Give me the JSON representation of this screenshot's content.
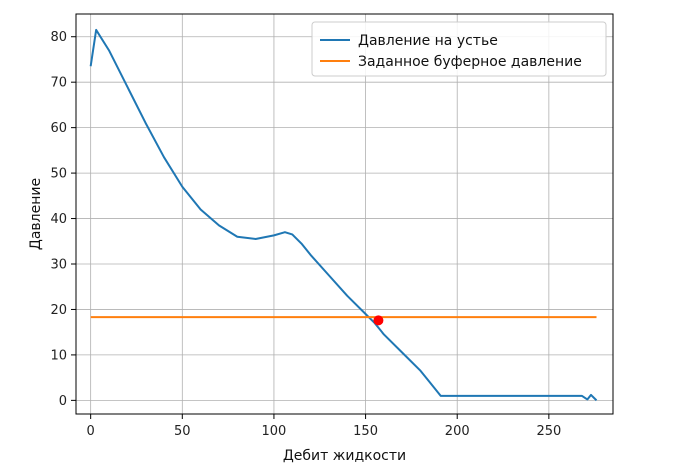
{
  "chart_data": {
    "type": "line",
    "title": "",
    "xlabel": "Дебит жидкости",
    "ylabel": "Давление",
    "xlim": [
      -8,
      285
    ],
    "ylim": [
      -3,
      85
    ],
    "xticks": [
      0,
      50,
      100,
      150,
      200,
      250
    ],
    "yticks": [
      0,
      10,
      20,
      30,
      40,
      50,
      60,
      70,
      80
    ],
    "grid": true,
    "legend_position": "top-right",
    "series": [
      {
        "name": "Давление на устье",
        "color": "#1f77b4",
        "points": [
          [
            0,
            73.5
          ],
          [
            3,
            81.5
          ],
          [
            10,
            77
          ],
          [
            20,
            69
          ],
          [
            30,
            61
          ],
          [
            40,
            53.5
          ],
          [
            50,
            47
          ],
          [
            60,
            42
          ],
          [
            70,
            38.5
          ],
          [
            80,
            36
          ],
          [
            90,
            35.5
          ],
          [
            100,
            36.3
          ],
          [
            106,
            37
          ],
          [
            110,
            36.5
          ],
          [
            115,
            34.5
          ],
          [
            120,
            32
          ],
          [
            130,
            27.5
          ],
          [
            140,
            23
          ],
          [
            150,
            19
          ],
          [
            155,
            17
          ],
          [
            160,
            14.5
          ],
          [
            170,
            10.5
          ],
          [
            180,
            6.5
          ],
          [
            187,
            3
          ],
          [
            191,
            1
          ],
          [
            200,
            1
          ],
          [
            220,
            1
          ],
          [
            250,
            1
          ],
          [
            268,
            1
          ],
          [
            271,
            0.2
          ],
          [
            273,
            1.2
          ],
          [
            276,
            0
          ]
        ]
      },
      {
        "name": "Заданное буферное давление",
        "color": "#ff7f0e",
        "points": [
          [
            0,
            18.3
          ],
          [
            276,
            18.3
          ]
        ]
      }
    ],
    "marker": {
      "x": 157,
      "y": 17.6,
      "color": "#ff0000"
    }
  }
}
